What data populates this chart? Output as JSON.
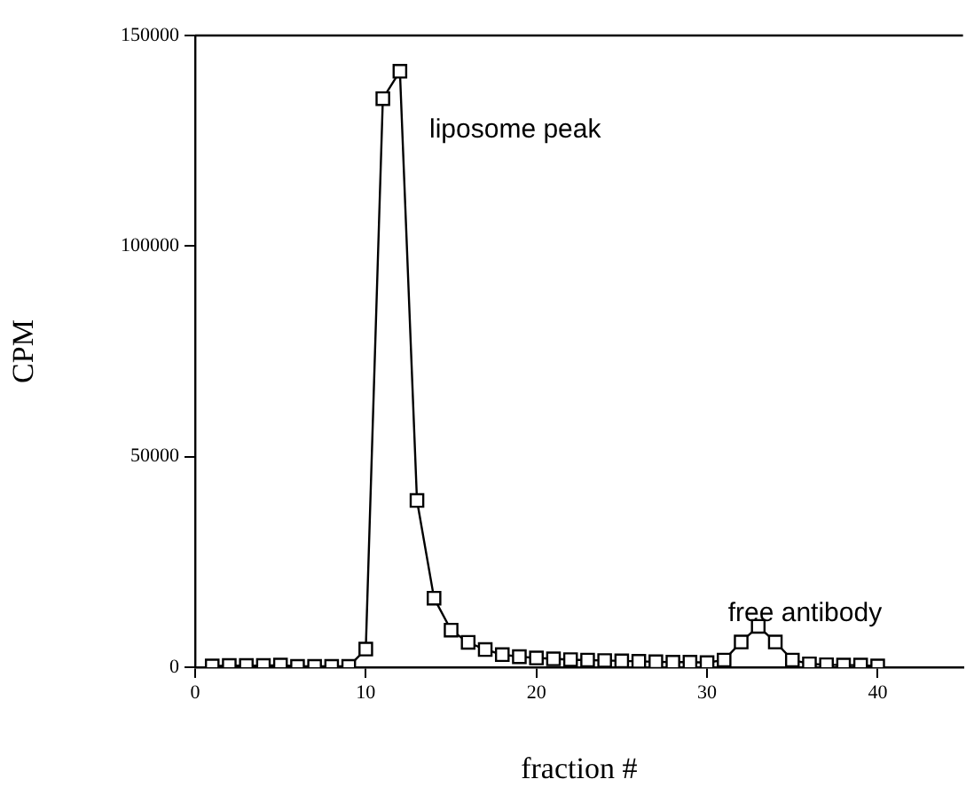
{
  "chart_data": {
    "type": "line",
    "xlabel": "fraction #",
    "ylabel": "CPM",
    "x": [
      1,
      2,
      3,
      4,
      5,
      6,
      7,
      8,
      9,
      10,
      11,
      12,
      13,
      14,
      15,
      16,
      17,
      18,
      19,
      20,
      21,
      22,
      23,
      24,
      25,
      26,
      27,
      28,
      29,
      30,
      31,
      32,
      33,
      34,
      35,
      36,
      37,
      38,
      39,
      40
    ],
    "series": [
      {
        "color": "#000000",
        "values": [
          300,
          400,
          400,
          400,
          500,
          200,
          200,
          200,
          200,
          4300,
          135000,
          141500,
          39600,
          16400,
          8800,
          5900,
          4200,
          3000,
          2500,
          2200,
          2000,
          1800,
          1700,
          1600,
          1500,
          1400,
          1300,
          1200,
          1200,
          1100,
          1700,
          6000,
          9700,
          6000,
          1700,
          800,
          600,
          500,
          500,
          300
        ]
      }
    ],
    "xlim": [
      0,
      45
    ],
    "xticks": [
      0,
      10,
      20,
      30,
      40
    ],
    "ylim": [
      0,
      150000
    ],
    "yticks": [
      0,
      50000,
      100000,
      150000
    ],
    "grid": false,
    "legend": false,
    "marker": "square",
    "line_style": "solid",
    "annotations": [
      "liposome peak",
      "free antibody"
    ]
  }
}
